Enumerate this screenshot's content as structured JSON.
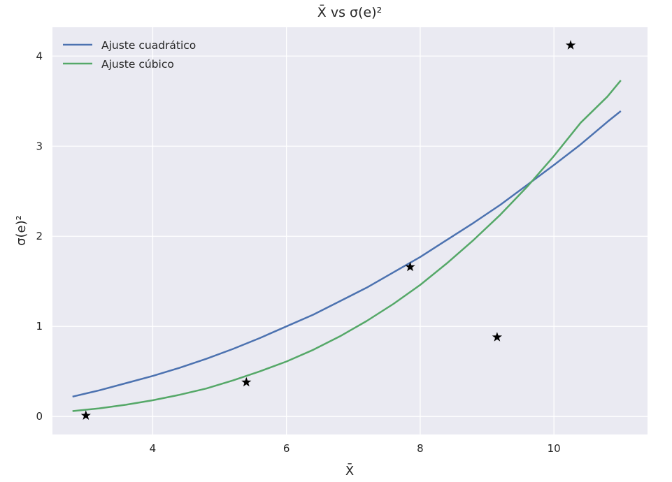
{
  "chart_data": {
    "type": "line",
    "title": "X̄ vs σ(e)²",
    "xlabel": "X̄",
    "ylabel": "σ(e)²",
    "xlim": [
      2.5,
      11.4
    ],
    "ylim": [
      -0.2,
      4.32
    ],
    "x_ticks": [
      "4",
      "6",
      "8",
      "10"
    ],
    "y_ticks": [
      "0",
      "1",
      "2",
      "3",
      "4"
    ],
    "grid": true,
    "legend_position": "top-left",
    "background_color": "#eaeaf2",
    "grid_color": "#ffffff",
    "series": [
      {
        "name": "Ajuste cuadrático",
        "color": "#4c72b0",
        "x": [
          2.8,
          3.2,
          3.6,
          4.0,
          4.4,
          4.8,
          5.2,
          5.6,
          6.0,
          6.4,
          6.8,
          7.2,
          7.6,
          8.0,
          8.4,
          8.8,
          9.2,
          9.6,
          10.0,
          10.4,
          10.8,
          11.0
        ],
        "y": [
          0.22,
          0.29,
          0.37,
          0.45,
          0.54,
          0.64,
          0.75,
          0.87,
          1.0,
          1.13,
          1.28,
          1.43,
          1.6,
          1.77,
          1.96,
          2.15,
          2.35,
          2.57,
          2.79,
          3.02,
          3.27,
          3.39
        ]
      },
      {
        "name": "Ajuste cúbico",
        "color": "#55a868",
        "x": [
          2.8,
          3.2,
          3.6,
          4.0,
          4.4,
          4.8,
          5.2,
          5.6,
          6.0,
          6.4,
          6.8,
          7.2,
          7.6,
          8.0,
          8.4,
          8.8,
          9.2,
          9.6,
          10.0,
          10.4,
          10.8,
          11.0
        ],
        "y": [
          0.06,
          0.09,
          0.13,
          0.18,
          0.24,
          0.31,
          0.4,
          0.5,
          0.61,
          0.74,
          0.89,
          1.06,
          1.25,
          1.46,
          1.7,
          1.96,
          2.24,
          2.55,
          2.89,
          3.26,
          3.55,
          3.73
        ]
      }
    ],
    "points": {
      "marker": "star",
      "color": "#000000",
      "x": [
        3.0,
        5.4,
        7.85,
        9.15,
        10.25
      ],
      "y": [
        0.01,
        0.38,
        1.66,
        0.88,
        4.12
      ]
    }
  }
}
